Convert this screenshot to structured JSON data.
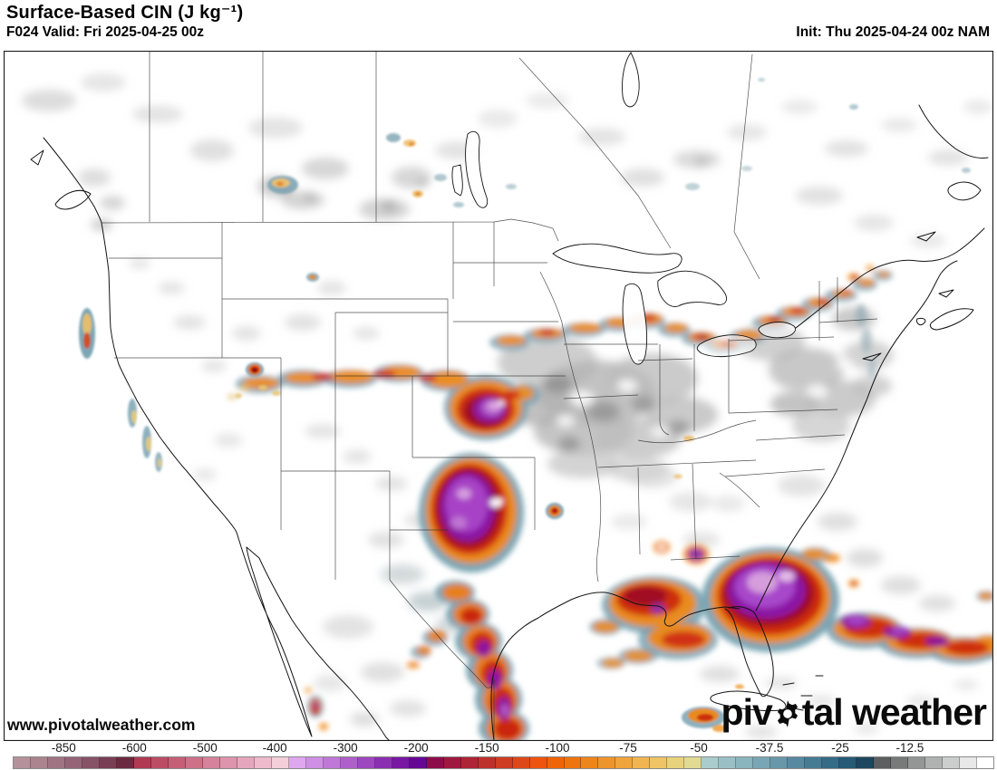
{
  "header": {
    "title": "Surface-Based CIN (J kg⁻¹)",
    "valid": "F024 Valid: Fri 2025-04-25 00z",
    "init": "Init: Thu 2025-04-24 00z NAM"
  },
  "map": {
    "watermark": "www.pivotalweather.com",
    "brand": {
      "left": "piv",
      "gear_icon": "gear-icon",
      "right": "tal weather"
    }
  },
  "colorbar": {
    "ticks": [
      {
        "label": "-850",
        "pos": 5.2
      },
      {
        "label": "-600",
        "pos": 12.4
      },
      {
        "label": "-500",
        "pos": 19.6
      },
      {
        "label": "-400",
        "pos": 26.7
      },
      {
        "label": "-300",
        "pos": 33.9
      },
      {
        "label": "-200",
        "pos": 41.1
      },
      {
        "label": "-150",
        "pos": 48.3
      },
      {
        "label": "-100",
        "pos": 55.5
      },
      {
        "label": "-75",
        "pos": 62.7
      },
      {
        "label": "-50",
        "pos": 69.9
      },
      {
        "label": "-37.5",
        "pos": 77.1
      },
      {
        "label": "-25",
        "pos": 84.3
      },
      {
        "label": "-12.5",
        "pos": 91.4
      }
    ],
    "segments": [
      "#b5929b",
      "#ab8490",
      "#a17484",
      "#956476",
      "#885266",
      "#7a3e54",
      "#6b2a40",
      "#b13a52",
      "#bb4c64",
      "#c55e76",
      "#cd7088",
      "#d5829a",
      "#dd94ac",
      "#e5a6bd",
      "#eebbcc",
      "#f4cfda",
      "#dfa7ef",
      "#cf8fe4",
      "#bf77d8",
      "#ae5fcc",
      "#9d47c0",
      "#8b2fb2",
      "#7817a4",
      "#660696",
      "#8e0c4a",
      "#9e1840",
      "#ae2436",
      "#be302c",
      "#ce3c22",
      "#de4818",
      "#ee540e",
      "#f06408",
      "#ee7410",
      "#ee841c",
      "#ee942c",
      "#f0a43c",
      "#f0b450",
      "#eec466",
      "#e8d27c",
      "#e2da92",
      "#aacccd",
      "#9ac0c6",
      "#8ab4be",
      "#79a6b4",
      "#6897aa",
      "#5789a0",
      "#467b94",
      "#356b86",
      "#265a76",
      "#1d4760",
      "#5c5e60",
      "#787a7a",
      "#949696",
      "#b0b2b2",
      "#cccece",
      "#e8e8e8",
      "#ffffff"
    ]
  },
  "chart_data": {
    "type": "heatmap",
    "title": "Surface-Based CIN (J kg⁻¹)",
    "model": "NAM",
    "forecast_hour": "F024",
    "valid_time": "Fri 2025-04-25 00z",
    "init_time": "Thu 2025-04-24 00z",
    "colorbar_tick_values": [
      -850,
      -600,
      -500,
      -400,
      -300,
      -200,
      -150,
      -100,
      -75,
      -50,
      -37.5,
      -25,
      -12.5
    ],
    "units": "J kg⁻¹",
    "legend_position": "bottom"
  }
}
